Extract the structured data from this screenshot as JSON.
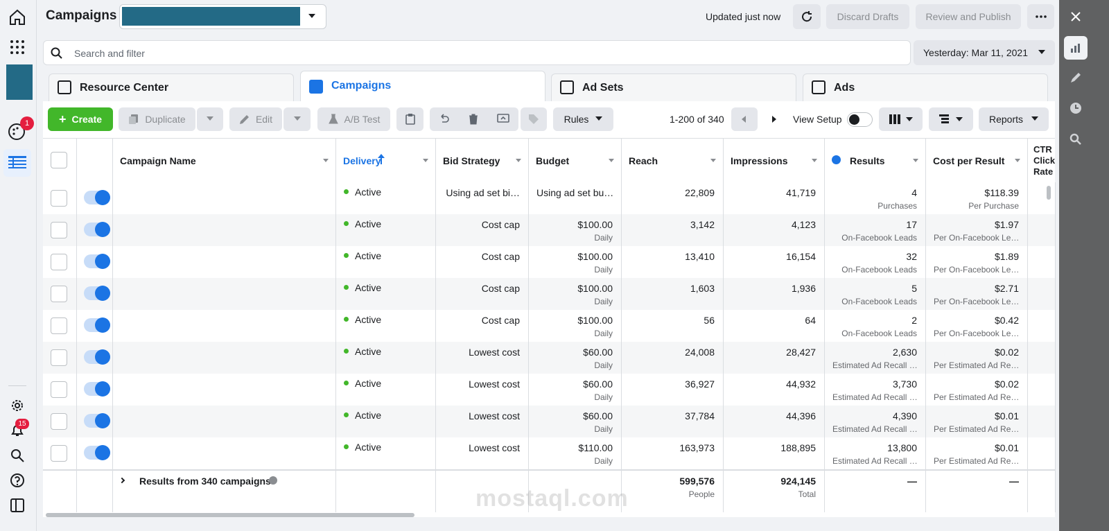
{
  "header": {
    "title": "Campaigns",
    "status": "Updated just now",
    "discard": "Discard Drafts",
    "publish": "Review and Publish"
  },
  "search": {
    "placeholder": "Search and filter",
    "date": "Yesterday: Mar 11, 2021"
  },
  "tabs": [
    "Resource Center",
    "Campaigns",
    "Ad Sets",
    "Ads"
  ],
  "toolbar": {
    "create": "Create",
    "duplicate": "Duplicate",
    "edit": "Edit",
    "ab_test": "A/B Test",
    "rules": "Rules",
    "pagination": "1-200 of 340",
    "view_setup": "View Setup",
    "reports": "Reports"
  },
  "sidebar": {
    "badge_palette": "1",
    "badge_notifications": "15"
  },
  "table": {
    "columns": [
      "Campaign Name",
      "Delivery",
      "Bid Strategy",
      "Budget",
      "Reach",
      "Impressions",
      "Results",
      "Cost per Result",
      "CTR Click Rate"
    ],
    "rows": [
      {
        "delivery": "Active",
        "bid": "Using ad set bi…",
        "budget": "Using ad set bu…",
        "budget_sub": null,
        "reach": "22,809",
        "impressions": "41,719",
        "results": "4",
        "results_sub": "Purchases",
        "cost": "$118.39",
        "cost_sub": "Per Purchase"
      },
      {
        "delivery": "Active",
        "bid": "Cost cap",
        "budget": "$100.00",
        "budget_sub": "Daily",
        "reach": "3,142",
        "impressions": "4,123",
        "results": "17",
        "results_sub": "On-Facebook Leads",
        "cost": "$1.97",
        "cost_sub": "Per On-Facebook Le…"
      },
      {
        "delivery": "Active",
        "bid": "Cost cap",
        "budget": "$100.00",
        "budget_sub": "Daily",
        "reach": "13,410",
        "impressions": "16,154",
        "results": "32",
        "results_sub": "On-Facebook Leads",
        "cost": "$1.89",
        "cost_sub": "Per On-Facebook Le…"
      },
      {
        "delivery": "Active",
        "bid": "Cost cap",
        "budget": "$100.00",
        "budget_sub": "Daily",
        "reach": "1,603",
        "impressions": "1,936",
        "results": "5",
        "results_sub": "On-Facebook Leads",
        "cost": "$2.71",
        "cost_sub": "Per On-Facebook Le…"
      },
      {
        "delivery": "Active",
        "bid": "Cost cap",
        "budget": "$100.00",
        "budget_sub": "Daily",
        "reach": "56",
        "impressions": "64",
        "results": "2",
        "results_sub": "On-Facebook Leads",
        "cost": "$0.42",
        "cost_sub": "Per On-Facebook Le…"
      },
      {
        "delivery": "Active",
        "bid": "Lowest cost",
        "budget": "$60.00",
        "budget_sub": "Daily",
        "reach": "24,008",
        "impressions": "28,427",
        "results": "2,630",
        "results_sub": "Estimated Ad Recall …",
        "cost": "$0.02",
        "cost_sub": "Per Estimated Ad Re…"
      },
      {
        "delivery": "Active",
        "bid": "Lowest cost",
        "budget": "$60.00",
        "budget_sub": "Daily",
        "reach": "36,927",
        "impressions": "44,932",
        "results": "3,730",
        "results_sub": "Estimated Ad Recall …",
        "cost": "$0.02",
        "cost_sub": "Per Estimated Ad Re…"
      },
      {
        "delivery": "Active",
        "bid": "Lowest cost",
        "budget": "$60.00",
        "budget_sub": "Daily",
        "reach": "37,784",
        "impressions": "44,396",
        "results": "4,390",
        "results_sub": "Estimated Ad Recall …",
        "cost": "$0.01",
        "cost_sub": "Per Estimated Ad Re…"
      },
      {
        "delivery": "Active",
        "bid": "Lowest cost",
        "budget": "$110.00",
        "budget_sub": "Daily",
        "reach": "163,973",
        "impressions": "188,895",
        "results": "13,800",
        "results_sub": "Estimated Ad Recall …",
        "cost": "$0.01",
        "cost_sub": "Per Estimated Ad Re…"
      }
    ],
    "footer": {
      "label": "Results from 340 campaigns",
      "reach": "599,576",
      "reach_sub": "People",
      "impressions": "924,145",
      "impressions_sub": "Total",
      "results": "—",
      "cost": "—"
    }
  },
  "watermark": "mostaql.com"
}
